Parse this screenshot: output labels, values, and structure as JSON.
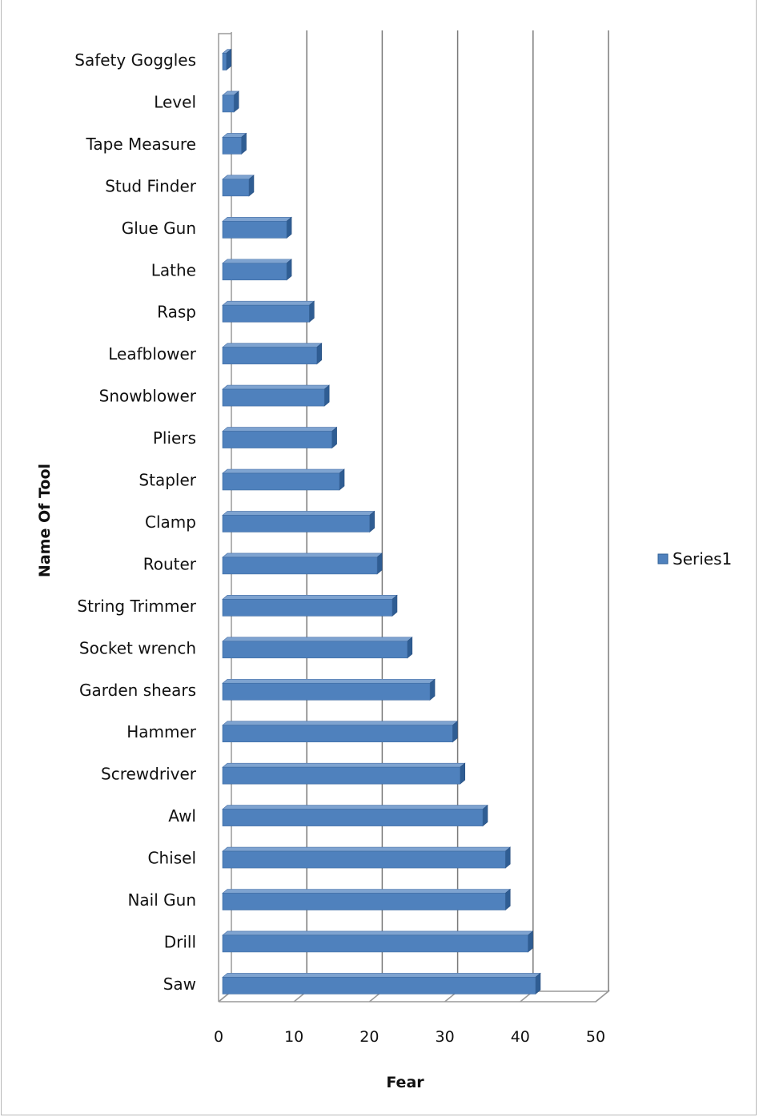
{
  "chart_data": {
    "type": "bar",
    "orientation": "horizontal",
    "style": "3d",
    "categories": [
      "Safety Goggles",
      "Level",
      "Tape Measure",
      "Stud Finder",
      "Glue Gun",
      "Lathe",
      "Rasp",
      "Leafblower",
      "Snowblower",
      "Pliers",
      "Stapler",
      "Clamp",
      "Router",
      "String Trimmer",
      "Socket wrench",
      "Garden shears",
      "Hammer",
      "Screwdriver",
      "Awl",
      "Chisel",
      "Nail Gun",
      "Drill",
      "Saw"
    ],
    "series": [
      {
        "name": "Series1",
        "color": "#4f81bd",
        "values": [
          0.5,
          1.5,
          2.5,
          3.5,
          8.5,
          8.5,
          11.5,
          12.5,
          13.5,
          14.5,
          15.5,
          19.5,
          20.5,
          22.5,
          24.5,
          27.5,
          30.5,
          31.5,
          34.5,
          37.5,
          37.5,
          40.5,
          41.5
        ]
      }
    ],
    "xlabel": "Fear",
    "ylabel": "Name Of Tool",
    "xlim": [
      0,
      50
    ],
    "ticks": [
      "0",
      "10",
      "20",
      "30",
      "40",
      "50"
    ],
    "grid": true,
    "legend": "right"
  }
}
